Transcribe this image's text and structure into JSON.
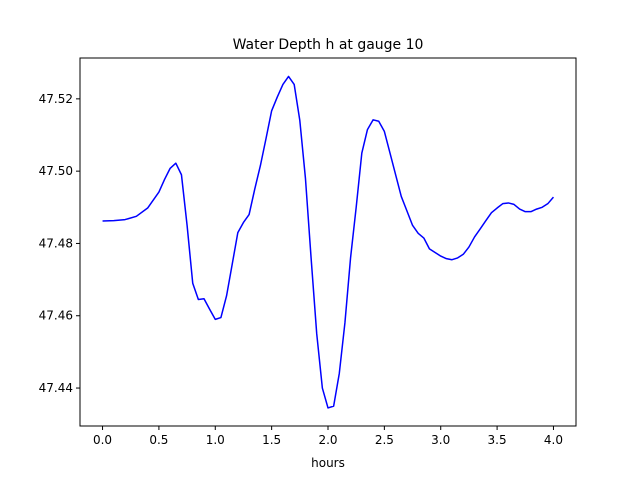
{
  "chart_data": {
    "type": "line",
    "title": "Water Depth h at gauge 10",
    "xlabel": "hours",
    "ylabel": "",
    "xlim": [
      -0.2,
      4.2
    ],
    "ylim": [
      47.4295,
      47.5313
    ],
    "xticks": [
      0.0,
      0.5,
      1.0,
      1.5,
      2.0,
      2.5,
      3.0,
      3.5,
      4.0
    ],
    "xtick_labels": [
      "0.0",
      "0.5",
      "1.0",
      "1.5",
      "2.0",
      "2.5",
      "3.0",
      "3.5",
      "4.0"
    ],
    "yticks": [
      47.44,
      47.46,
      47.48,
      47.5,
      47.52
    ],
    "ytick_labels": [
      "47.44",
      "47.46",
      "47.48",
      "47.50",
      "47.52"
    ],
    "grid": false,
    "series": [
      {
        "color": "#0000ff",
        "x": [
          0.0,
          0.1,
          0.2,
          0.3,
          0.4,
          0.5,
          0.55,
          0.6,
          0.65,
          0.7,
          0.75,
          0.8,
          0.85,
          0.9,
          0.95,
          1.0,
          1.05,
          1.1,
          1.15,
          1.2,
          1.25,
          1.3,
          1.35,
          1.4,
          1.45,
          1.5,
          1.55,
          1.6,
          1.65,
          1.7,
          1.75,
          1.8,
          1.85,
          1.9,
          1.95,
          2.0,
          2.05,
          2.1,
          2.15,
          2.2,
          2.25,
          2.3,
          2.35,
          2.4,
          2.45,
          2.5,
          2.55,
          2.6,
          2.65,
          2.7,
          2.75,
          2.8,
          2.85,
          2.9,
          2.95,
          3.0,
          3.05,
          3.1,
          3.15,
          3.2,
          3.25,
          3.3,
          3.35,
          3.4,
          3.45,
          3.5,
          3.55,
          3.6,
          3.65,
          3.7,
          3.75,
          3.8,
          3.85,
          3.9,
          3.95,
          4.0
        ],
        "y": [
          47.4862,
          47.4863,
          47.4866,
          47.4875,
          47.4898,
          47.4942,
          47.4977,
          47.5008,
          47.5022,
          47.499,
          47.485,
          47.469,
          47.4645,
          47.4647,
          47.4618,
          47.459,
          47.4595,
          47.4655,
          47.4742,
          47.483,
          47.4858,
          47.488,
          47.495,
          47.5015,
          47.509,
          47.5167,
          47.5205,
          47.524,
          47.5262,
          47.524,
          47.514,
          47.498,
          47.476,
          47.455,
          47.44,
          47.4345,
          47.435,
          47.444,
          47.458,
          47.476,
          47.49,
          47.505,
          47.5115,
          47.5142,
          47.5138,
          47.511,
          47.505,
          47.499,
          47.493,
          47.489,
          47.485,
          47.4828,
          47.4815,
          47.4785,
          47.4775,
          47.4765,
          47.4758,
          47.4755,
          47.476,
          47.477,
          47.479,
          47.4818,
          47.484,
          47.4863,
          47.4885,
          47.4898,
          47.491,
          47.4912,
          47.4908,
          47.4895,
          47.4888,
          47.4888,
          47.4895,
          47.49,
          47.491,
          47.4928
        ]
      }
    ]
  }
}
